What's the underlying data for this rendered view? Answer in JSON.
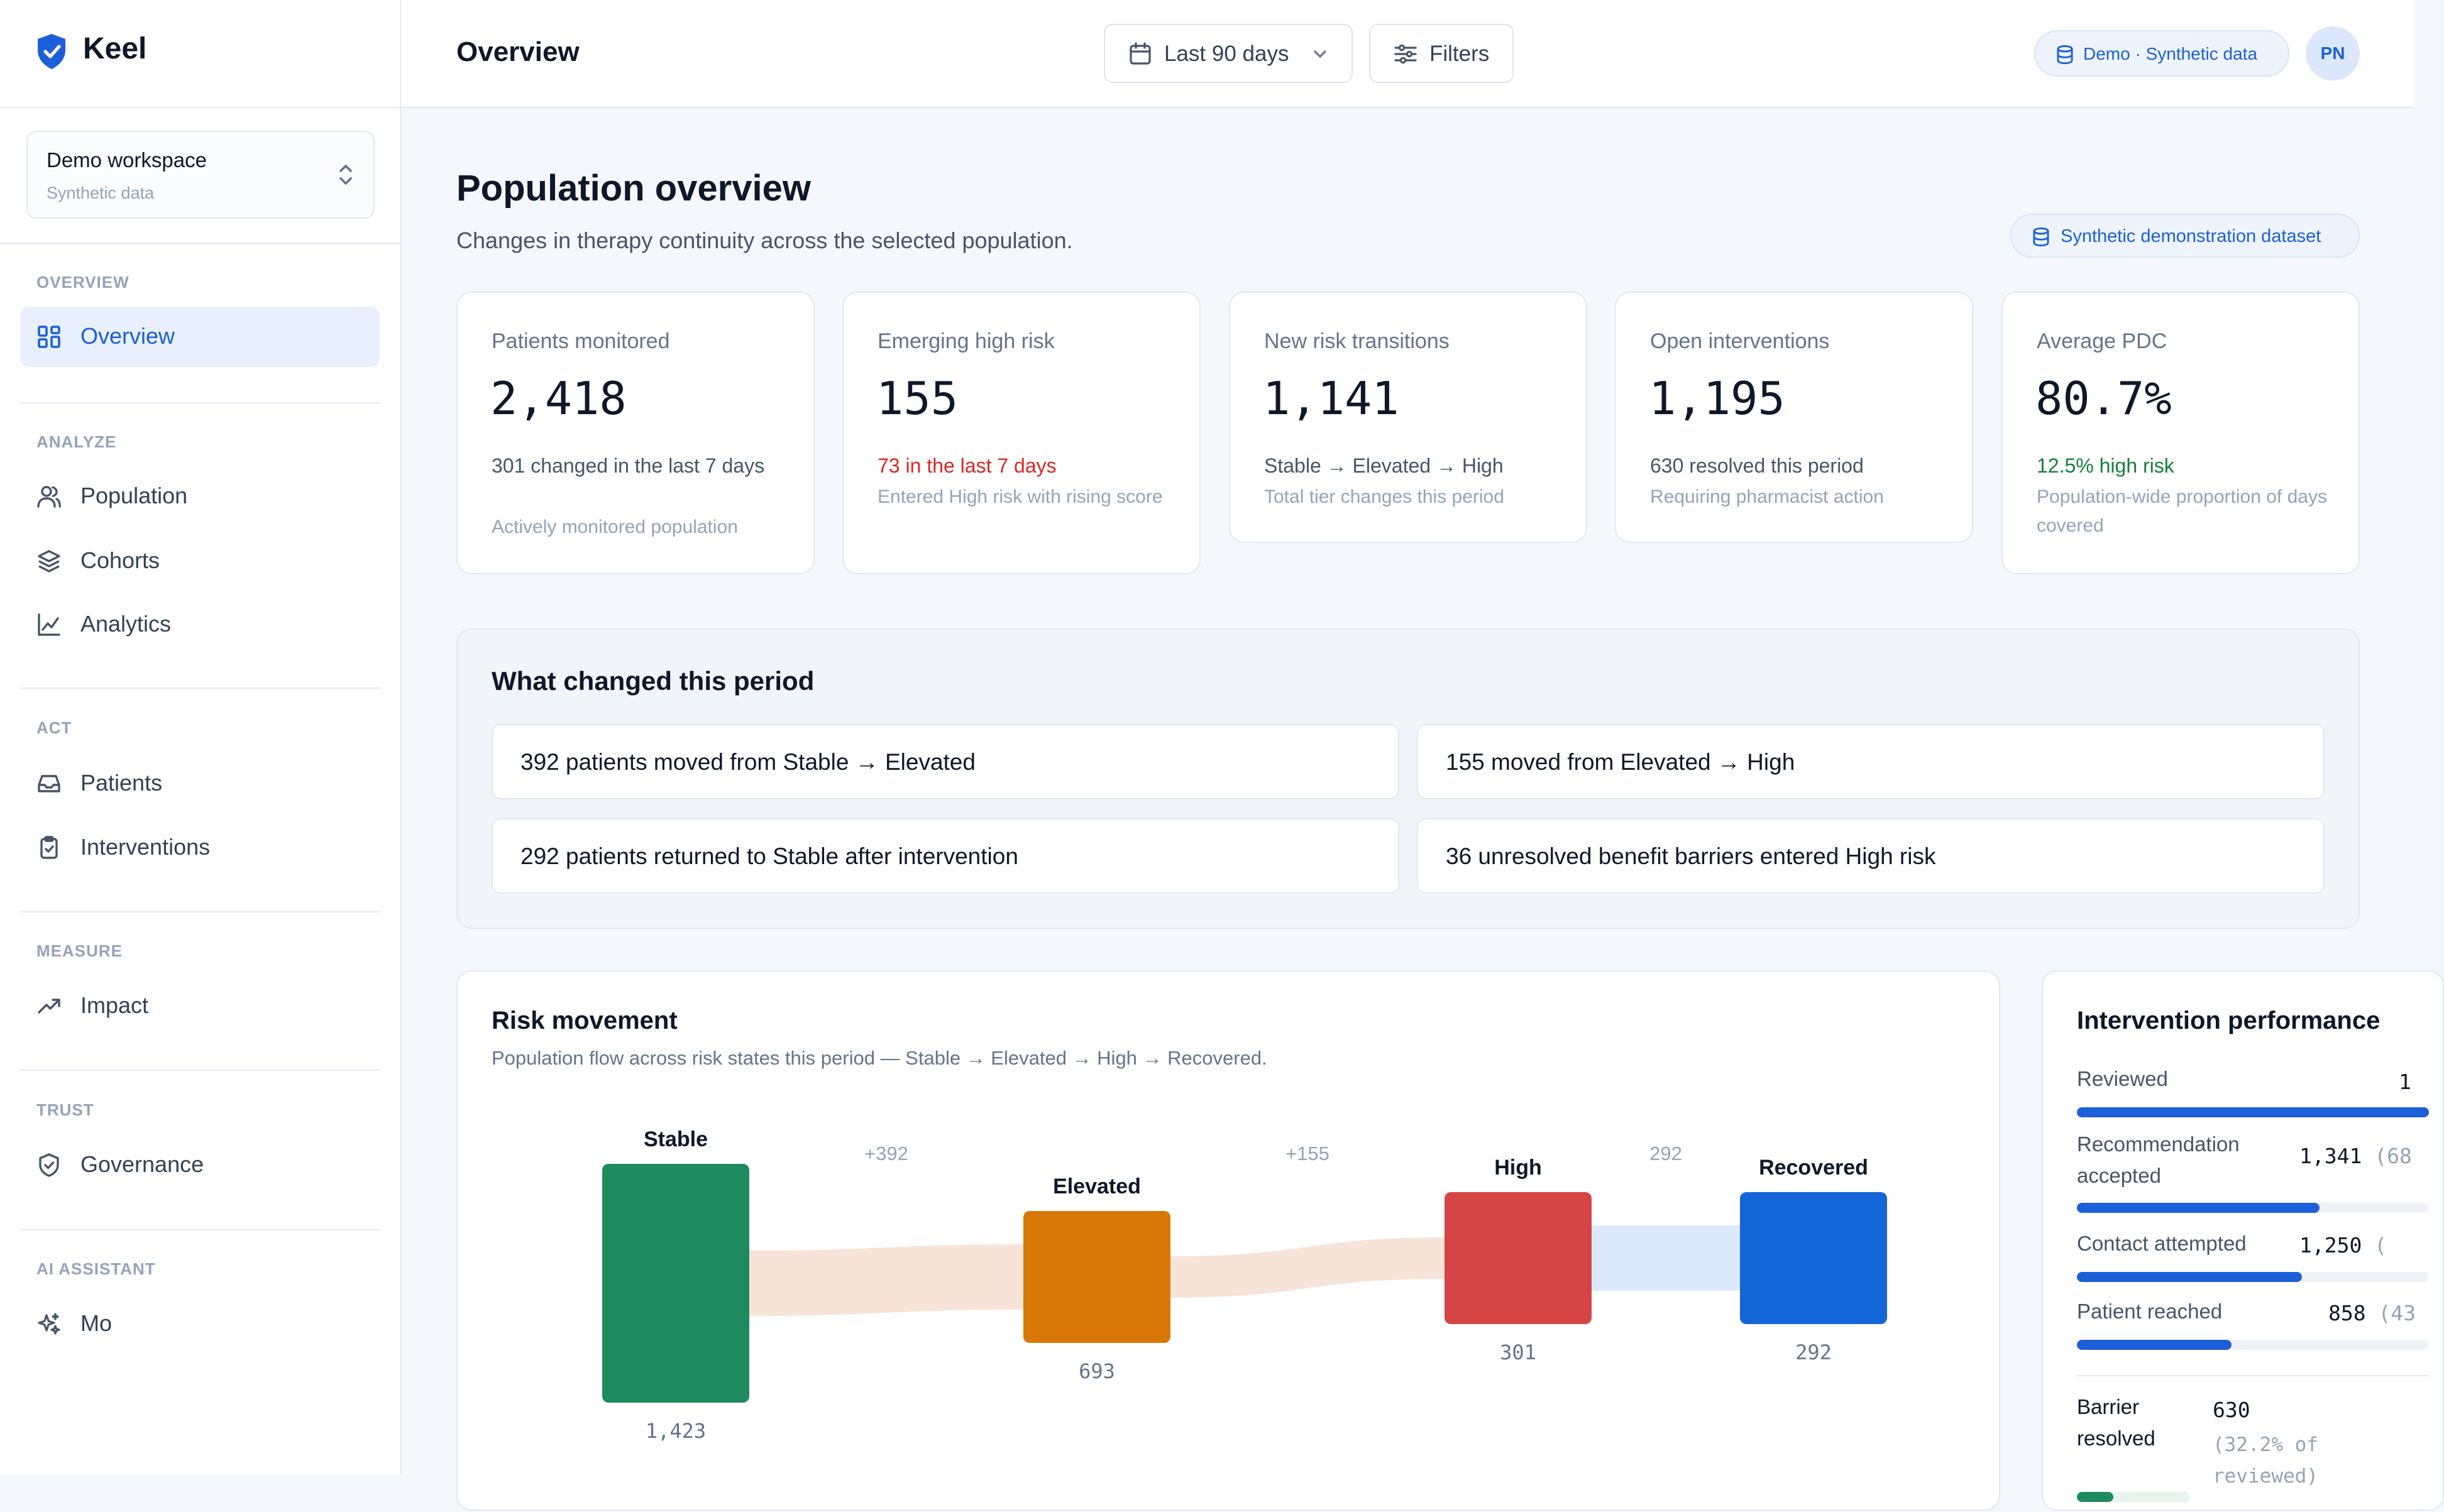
{
  "app": {
    "name": "Keel"
  },
  "workspace": {
    "name": "Demo workspace",
    "sub": "Synthetic data"
  },
  "sidebar": {
    "sections": [
      {
        "title": "OVERVIEW",
        "items": [
          {
            "label": "Overview",
            "icon": "grid-icon",
            "active": true
          }
        ]
      },
      {
        "title": "ANALYZE",
        "items": [
          {
            "label": "Population",
            "icon": "users-icon"
          },
          {
            "label": "Cohorts",
            "icon": "layers-icon"
          },
          {
            "label": "Analytics",
            "icon": "line-chart-icon"
          }
        ]
      },
      {
        "title": "ACT",
        "items": [
          {
            "label": "Patients",
            "icon": "inbox-icon"
          },
          {
            "label": "Interventions",
            "icon": "clipboard-check-icon"
          }
        ]
      },
      {
        "title": "MEASURE",
        "items": [
          {
            "label": "Impact",
            "icon": "trending-up-icon"
          }
        ]
      },
      {
        "title": "TRUST",
        "items": [
          {
            "label": "Governance",
            "icon": "shield-check-icon"
          }
        ]
      },
      {
        "title": "AI ASSISTANT",
        "items": [
          {
            "label": "Mo",
            "icon": "sparkles-icon"
          }
        ]
      }
    ]
  },
  "topbar": {
    "title": "Overview",
    "date_range": "Last 90 days",
    "filters_label": "Filters",
    "demo_badge": "Demo · Synthetic data",
    "avatar_initials": "PN"
  },
  "page": {
    "title": "Population overview",
    "subtitle": "Changes in therapy continuity across the selected population.",
    "dataset_badge": "Synthetic demonstration dataset"
  },
  "kpis": [
    {
      "label": "Patients monitored",
      "value": "2,418",
      "primary": "301 changed in the last 7 days",
      "primary_tone": "neutral",
      "secondary": "Actively monitored population"
    },
    {
      "label": "Emerging high risk",
      "value": "155",
      "primary": "73 in the last 7 days",
      "primary_tone": "red",
      "secondary": "Entered High risk with rising score"
    },
    {
      "label": "New risk transitions",
      "value": "1,141",
      "primary": "Stable → Elevated → High",
      "primary_tone": "neutral",
      "secondary": "Total tier changes this period"
    },
    {
      "label": "Open interventions",
      "value": "1,195",
      "primary": "630 resolved this period",
      "primary_tone": "neutral",
      "secondary": "Requiring pharmacist action"
    },
    {
      "label": "Average PDC",
      "value": "80.7%",
      "primary": "12.5% high risk",
      "primary_tone": "green",
      "secondary": "Population-wide proportion of days covered"
    }
  ],
  "changes": {
    "title": "What changed this period",
    "items": [
      "392 patients moved from Stable → Elevated",
      "155 moved from Elevated → High",
      "292 patients returned to Stable after intervention",
      "36 unresolved benefit barriers entered High risk"
    ]
  },
  "risk": {
    "title": "Risk movement",
    "subtitle": "Population flow across risk states this period — Stable → Elevated → High → Recovered."
  },
  "chart_data": {
    "type": "sankey",
    "nodes": [
      {
        "name": "Stable",
        "value": 1423,
        "value_label": "1,423",
        "color": "#1f8a5e"
      },
      {
        "name": "Elevated",
        "value": 693,
        "value_label": "693",
        "color": "#d97706"
      },
      {
        "name": "High",
        "value": 301,
        "value_label": "301",
        "color": "#d64545"
      },
      {
        "name": "Recovered",
        "value": 292,
        "value_label": "292",
        "color": "#1466d8"
      }
    ],
    "flows": [
      {
        "from": "Stable",
        "to": "Elevated",
        "value": 392,
        "label": "+392",
        "color": "#f7e4d8"
      },
      {
        "from": "Elevated",
        "to": "High",
        "value": 155,
        "label": "+155",
        "color": "#f7e4d8"
      },
      {
        "from": "High",
        "to": "Recovered",
        "value": 292,
        "label": "292",
        "color": "#dce8fb"
      }
    ]
  },
  "performance": {
    "title": "Intervention performance",
    "rows": [
      {
        "label": "Reviewed",
        "value": "1",
        "pct": "",
        "fraction": 1.0
      },
      {
        "label": "Recommendation accepted",
        "value": "1,341",
        "pct": "(68",
        "fraction": 0.69
      },
      {
        "label": "Contact attempted",
        "value": "1,250",
        "pct": "(",
        "fraction": 0.64
      },
      {
        "label": "Patient reached",
        "value": "858",
        "pct": "(43",
        "fraction": 0.44
      },
      {
        "label": "Barrier resolved",
        "value": "630",
        "pct": "(32.2% of reviewed)",
        "fraction": 0.32
      }
    ]
  },
  "colors": {
    "accent": "#1d5fd8",
    "red": "#dc2626",
    "green": "#15803d"
  }
}
